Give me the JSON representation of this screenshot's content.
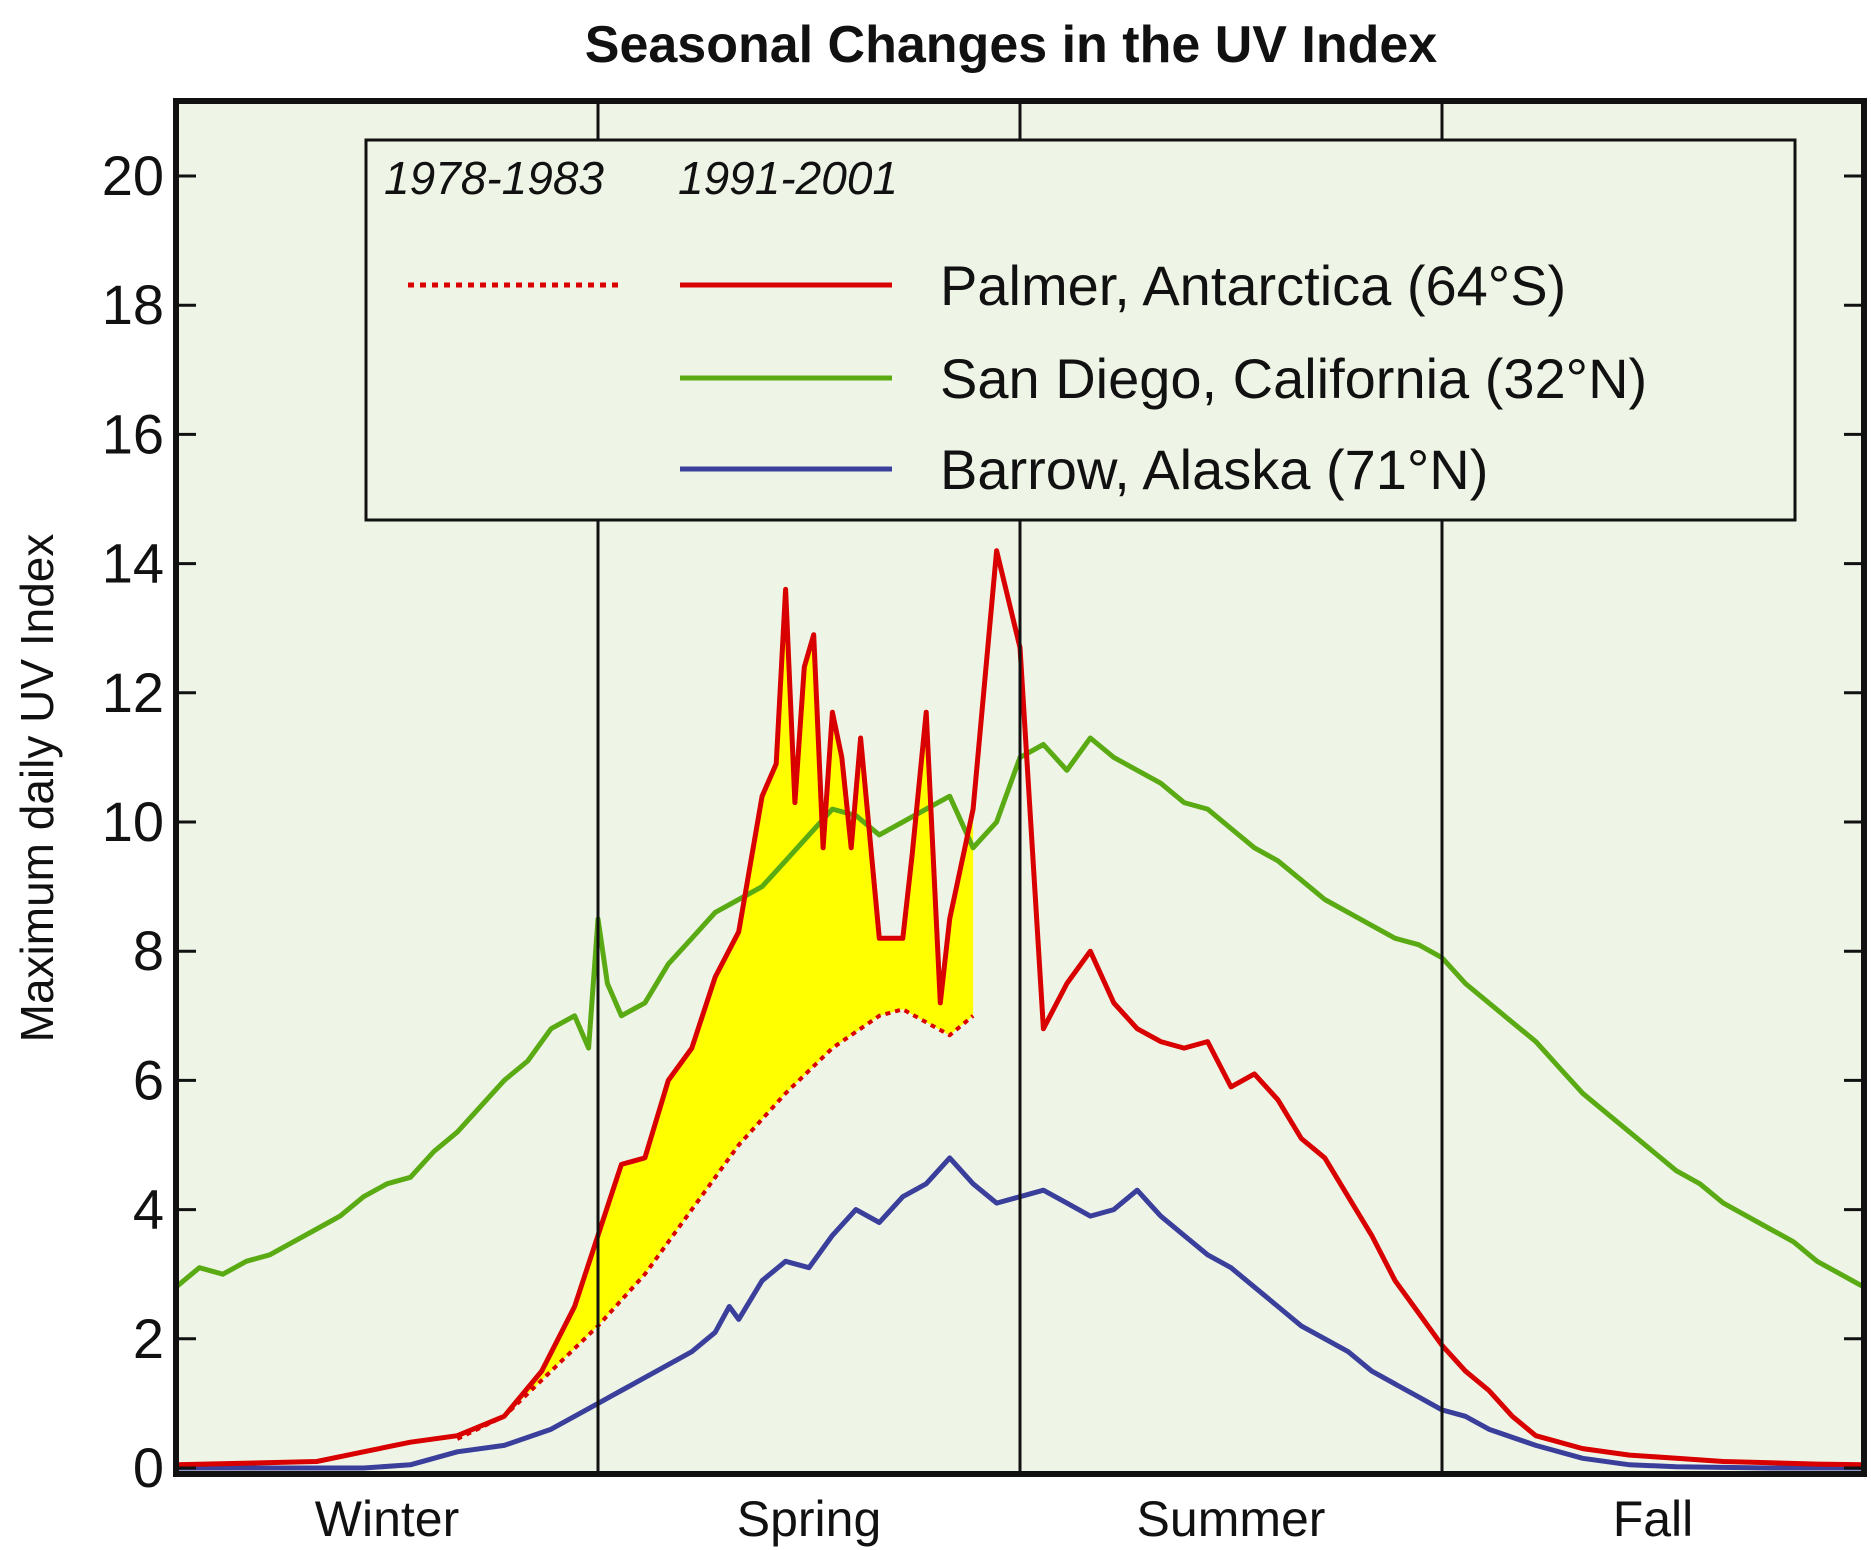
{
  "chart_data": {
    "type": "line",
    "title": "Seasonal Changes in the UV Index",
    "ylabel": "Maximum daily UV Index",
    "xlabel": "",
    "ylim": [
      0,
      21.2
    ],
    "yticks": [
      0,
      2,
      4,
      6,
      8,
      10,
      12,
      14,
      16,
      18,
      20
    ],
    "seasons": [
      "Winter",
      "Spring",
      "Summer",
      "Fall"
    ],
    "x_units": "day of season cycle (0-360; Winter 0-90, Spring 90-180, Summer 180-270, Fall 270-360)",
    "xlim": [
      0,
      360
    ],
    "season_boundaries": [
      90,
      180,
      270
    ],
    "grid": false,
    "legend": {
      "placement": "top",
      "period_labels": [
        "1978-1983",
        "1991-2001"
      ]
    },
    "colors": {
      "background": "#eff5e6",
      "palmer": "#d90000",
      "san_diego": "#5aaa14",
      "barrow": "#3b3f9c",
      "fill": "#ffff00"
    },
    "series": [
      {
        "name": "Palmer, Antarctica (64°S)",
        "period": "1991-2001",
        "style": "solid",
        "x": [
          0,
          30,
          40,
          50,
          60,
          70,
          78,
          85,
          90,
          95,
          100,
          105,
          110,
          115,
          120,
          125,
          128,
          130,
          132,
          134,
          136,
          138,
          140,
          142,
          144,
          146,
          150,
          155,
          157,
          160,
          163,
          165,
          170,
          175,
          180,
          185,
          190,
          195,
          200,
          205,
          210,
          215,
          220,
          225,
          230,
          235,
          240,
          245,
          250,
          255,
          260,
          265,
          270,
          275,
          280,
          285,
          290,
          300,
          310,
          320,
          330,
          340,
          350,
          360
        ],
        "y": [
          0.05,
          0.1,
          0.25,
          0.4,
          0.5,
          0.8,
          1.5,
          2.5,
          3.6,
          4.7,
          4.8,
          6,
          6.5,
          7.6,
          8.3,
          10.4,
          10.9,
          13.6,
          10.3,
          12.4,
          12.9,
          9.6,
          11.7,
          11,
          9.6,
          11.3,
          8.2,
          8.2,
          9.5,
          11.7,
          7.2,
          8.5,
          10.2,
          14.2,
          12.7,
          6.8,
          7.5,
          8,
          7.2,
          6.8,
          6.6,
          6.5,
          6.6,
          5.9,
          6.1,
          5.7,
          5.1,
          4.8,
          4.2,
          3.6,
          2.9,
          2.4,
          1.9,
          1.5,
          1.2,
          0.8,
          0.5,
          0.3,
          0.2,
          0.15,
          0.1,
          0.08,
          0.06,
          0.05
        ]
      },
      {
        "name": "Palmer, Antarctica (64°S)",
        "period": "1978-1983",
        "style": "dotted",
        "x": [
          60,
          70,
          80,
          90,
          100,
          110,
          120,
          130,
          140,
          150,
          155,
          160,
          165,
          170
        ],
        "y": [
          0.45,
          0.8,
          1.5,
          2.2,
          3.0,
          4.0,
          5.0,
          5.8,
          6.5,
          7.0,
          7.1,
          6.9,
          6.7,
          7.0
        ]
      },
      {
        "name": "San Diego, California (32°N)",
        "period": "1991-2001",
        "style": "solid",
        "x": [
          0,
          5,
          10,
          15,
          20,
          25,
          30,
          35,
          40,
          45,
          50,
          55,
          60,
          65,
          70,
          75,
          80,
          85,
          88,
          90,
          92,
          95,
          100,
          105,
          110,
          115,
          120,
          125,
          130,
          135,
          140,
          145,
          150,
          155,
          160,
          165,
          170,
          175,
          180,
          185,
          190,
          195,
          200,
          205,
          210,
          215,
          220,
          225,
          230,
          235,
          240,
          245,
          250,
          255,
          260,
          265,
          270,
          275,
          280,
          285,
          290,
          295,
          300,
          305,
          310,
          315,
          320,
          325,
          330,
          335,
          340,
          345,
          350,
          355,
          360
        ],
        "y": [
          2.8,
          3.1,
          3.0,
          3.2,
          3.3,
          3.5,
          3.7,
          3.9,
          4.2,
          4.4,
          4.5,
          4.9,
          5.2,
          5.6,
          6.0,
          6.3,
          6.8,
          7.0,
          6.5,
          8.5,
          7.5,
          7.0,
          7.2,
          7.8,
          8.2,
          8.6,
          8.8,
          9.0,
          9.4,
          9.8,
          10.2,
          10.1,
          9.8,
          10.0,
          10.2,
          10.4,
          9.6,
          10.0,
          11.0,
          11.2,
          10.8,
          11.3,
          11.0,
          10.8,
          10.6,
          10.3,
          10.2,
          9.9,
          9.6,
          9.4,
          9.1,
          8.8,
          8.6,
          8.4,
          8.2,
          8.1,
          7.9,
          7.5,
          7.2,
          6.9,
          6.6,
          6.2,
          5.8,
          5.5,
          5.2,
          4.9,
          4.6,
          4.4,
          4.1,
          3.9,
          3.7,
          3.5,
          3.2,
          3.0,
          2.8
        ]
      },
      {
        "name": "Barrow, Alaska (71°N)",
        "period": "1991-2001",
        "style": "solid",
        "x": [
          0,
          40,
          50,
          60,
          70,
          80,
          85,
          90,
          95,
          100,
          110,
          115,
          118,
          120,
          125,
          130,
          135,
          140,
          145,
          150,
          155,
          160,
          165,
          170,
          175,
          180,
          185,
          190,
          195,
          200,
          205,
          210,
          215,
          220,
          225,
          230,
          235,
          240,
          245,
          250,
          255,
          260,
          265,
          270,
          275,
          280,
          290,
          300,
          310,
          320,
          330,
          340,
          350,
          360
        ],
        "y": [
          0,
          0,
          0.05,
          0.25,
          0.35,
          0.6,
          0.8,
          1.0,
          1.2,
          1.4,
          1.8,
          2.1,
          2.5,
          2.3,
          2.9,
          3.2,
          3.1,
          3.6,
          4.0,
          3.8,
          4.2,
          4.4,
          4.8,
          4.4,
          4.1,
          4.2,
          4.3,
          4.1,
          3.9,
          4.0,
          4.3,
          3.9,
          3.6,
          3.3,
          3.1,
          2.8,
          2.5,
          2.2,
          2.0,
          1.8,
          1.5,
          1.3,
          1.1,
          0.9,
          0.8,
          0.6,
          0.35,
          0.15,
          0.05,
          0.02,
          0.01,
          0,
          0,
          0
        ]
      }
    ]
  }
}
